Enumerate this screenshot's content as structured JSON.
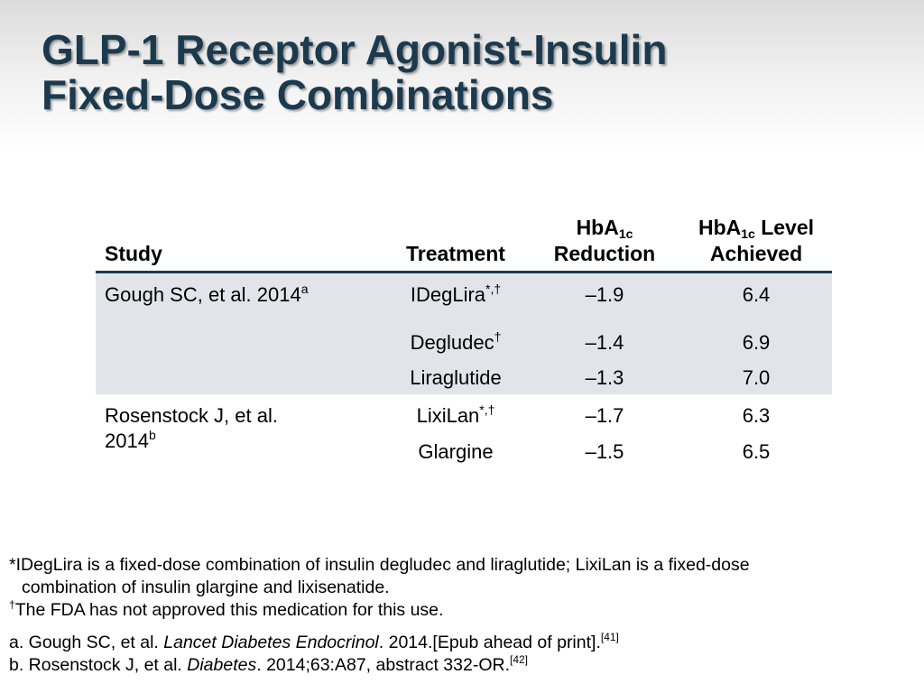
{
  "slide": {
    "title_line1": "GLP-1 Receptor Agonist-Insulin",
    "title_line2": "Fixed-Dose Combinations"
  },
  "table": {
    "headers": {
      "study": "Study",
      "treatment": "Treatment",
      "reduction_prefix": "HbA",
      "reduction_sub": "1c",
      "reduction_suffix": "Reduction",
      "level_prefix": "HbA",
      "level_sub": "1c",
      "level_mid": " Level",
      "level_suffix": "Achieved"
    },
    "groups": [
      {
        "study": "Gough SC, et al. 2014",
        "study_sup": "a",
        "rows": [
          {
            "treatment": "IDegLira",
            "sup": "*,†",
            "reduction": "–1.9",
            "level": "6.4"
          },
          {
            "treatment": "Degludec",
            "sup": "†",
            "reduction": "–1.4",
            "level": "6.9"
          },
          {
            "treatment": "Liraglutide",
            "sup": "",
            "reduction": "–1.3",
            "level": "7.0"
          }
        ]
      },
      {
        "study_line1": "Rosenstock J, et al.",
        "study_line2": "2014",
        "study_sup": "b",
        "rows": [
          {
            "treatment": "LixiLan",
            "sup": "*,†",
            "reduction": "–1.7",
            "level": "6.3"
          },
          {
            "treatment": "Glargine",
            "sup": "",
            "reduction": "–1.5",
            "level": "6.5"
          }
        ]
      }
    ]
  },
  "footnotes": {
    "asterisk_line1": "*IDegLira is a fixed-dose combination of insulin  degludec and liraglutide; LixiLan is a fixed-dose",
    "asterisk_line2": "combination of insulin glargine and lixisenatide.",
    "dagger_mark": "†",
    "dagger_text": "The FDA has not approved this medication for this use.",
    "ref_a_prefix": "a. Gough SC, et al. ",
    "ref_a_journal": "Lancet Diabetes Endocrinol",
    "ref_a_suffix": ". 2014.[Epub ahead of print].",
    "ref_a_cite": "[41]",
    "ref_b_prefix": "b. Rosenstock J, et al. ",
    "ref_b_journal": "Diabetes",
    "ref_b_suffix": ". 2014;63:A87, abstract 332-OR.",
    "ref_b_cite": "[42]"
  },
  "colors": {
    "title": "#1c3a4e",
    "table_shade": "#e1e5e9",
    "rule": "#1c3a4e"
  }
}
